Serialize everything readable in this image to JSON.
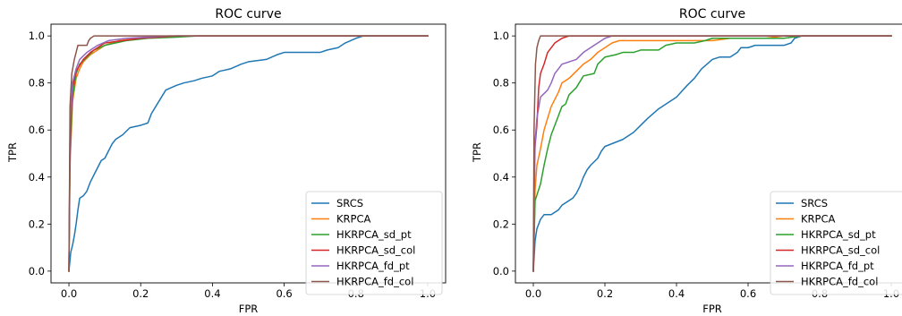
{
  "chart_data": [
    {
      "type": "line",
      "title": "ROC curve",
      "xlabel": "FPR",
      "ylabel": "TPR",
      "xlim": [
        -0.05,
        1.05
      ],
      "ylim": [
        -0.05,
        1.05
      ],
      "xticks": [
        "0.0",
        "0.2",
        "0.4",
        "0.6",
        "0.8",
        "1.0"
      ],
      "yticks": [
        "0.0",
        "0.2",
        "0.4",
        "0.6",
        "0.8",
        "1.0"
      ],
      "grid": false,
      "legend": "lower right",
      "series": [
        {
          "name": "SRCS",
          "color": "#1f77b4",
          "points": [
            [
              0,
              0
            ],
            [
              0.005,
              0.08
            ],
            [
              0.01,
              0.11
            ],
            [
              0.015,
              0.15
            ],
            [
              0.02,
              0.2
            ],
            [
              0.025,
              0.26
            ],
            [
              0.03,
              0.31
            ],
            [
              0.04,
              0.32
            ],
            [
              0.05,
              0.34
            ],
            [
              0.06,
              0.38
            ],
            [
              0.07,
              0.41
            ],
            [
              0.08,
              0.44
            ],
            [
              0.09,
              0.47
            ],
            [
              0.1,
              0.48
            ],
            [
              0.11,
              0.51
            ],
            [
              0.12,
              0.54
            ],
            [
              0.13,
              0.56
            ],
            [
              0.15,
              0.58
            ],
            [
              0.17,
              0.61
            ],
            [
              0.2,
              0.62
            ],
            [
              0.22,
              0.63
            ],
            [
              0.23,
              0.67
            ],
            [
              0.25,
              0.72
            ],
            [
              0.27,
              0.77
            ],
            [
              0.3,
              0.79
            ],
            [
              0.32,
              0.8
            ],
            [
              0.35,
              0.81
            ],
            [
              0.37,
              0.82
            ],
            [
              0.4,
              0.83
            ],
            [
              0.42,
              0.85
            ],
            [
              0.45,
              0.86
            ],
            [
              0.48,
              0.88
            ],
            [
              0.5,
              0.89
            ],
            [
              0.55,
              0.9
            ],
            [
              0.58,
              0.92
            ],
            [
              0.6,
              0.93
            ],
            [
              0.7,
              0.93
            ],
            [
              0.72,
              0.94
            ],
            [
              0.75,
              0.95
            ],
            [
              0.77,
              0.97
            ],
            [
              0.8,
              0.99
            ],
            [
              0.82,
              1.0
            ],
            [
              1.0,
              1.0
            ]
          ]
        },
        {
          "name": "KRPCA",
          "color": "#ff7f0e",
          "points": [
            [
              0,
              0
            ],
            [
              0.003,
              0.45
            ],
            [
              0.01,
              0.72
            ],
            [
              0.02,
              0.82
            ],
            [
              0.03,
              0.86
            ],
            [
              0.04,
              0.89
            ],
            [
              0.06,
              0.92
            ],
            [
              0.08,
              0.94
            ],
            [
              0.1,
              0.96
            ],
            [
              0.14,
              0.98
            ],
            [
              0.2,
              0.99
            ],
            [
              0.25,
              0.995
            ],
            [
              0.35,
              1.0
            ],
            [
              1.0,
              1.0
            ]
          ]
        },
        {
          "name": "HKRPCA_sd_pt",
          "color": "#2ca02c",
          "points": [
            [
              0,
              0
            ],
            [
              0.003,
              0.5
            ],
            [
              0.01,
              0.74
            ],
            [
              0.02,
              0.84
            ],
            [
              0.03,
              0.88
            ],
            [
              0.05,
              0.91
            ],
            [
              0.07,
              0.94
            ],
            [
              0.1,
              0.96
            ],
            [
              0.13,
              0.97
            ],
            [
              0.16,
              0.98
            ],
            [
              0.22,
              0.99
            ],
            [
              0.3,
              0.995
            ],
            [
              0.36,
              1.0
            ],
            [
              1.0,
              1.0
            ]
          ]
        },
        {
          "name": "HKRPCA_sd_col",
          "color": "#d62728",
          "points": [
            [
              0,
              0
            ],
            [
              0.003,
              0.55
            ],
            [
              0.01,
              0.78
            ],
            [
              0.02,
              0.85
            ],
            [
              0.04,
              0.9
            ],
            [
              0.06,
              0.93
            ],
            [
              0.08,
              0.95
            ],
            [
              0.1,
              0.97
            ],
            [
              0.15,
              0.98
            ],
            [
              0.2,
              0.99
            ],
            [
              0.25,
              0.995
            ],
            [
              0.3,
              1.0
            ],
            [
              1.0,
              1.0
            ]
          ]
        },
        {
          "name": "HKRPCA_fd_pt",
          "color": "#9467bd",
          "points": [
            [
              0,
              0
            ],
            [
              0.003,
              0.6
            ],
            [
              0.01,
              0.8
            ],
            [
              0.02,
              0.86
            ],
            [
              0.03,
              0.9
            ],
            [
              0.05,
              0.93
            ],
            [
              0.08,
              0.96
            ],
            [
              0.11,
              0.98
            ],
            [
              0.16,
              0.99
            ],
            [
              0.22,
              0.995
            ],
            [
              0.28,
              1.0
            ],
            [
              1.0,
              1.0
            ]
          ]
        },
        {
          "name": "HKRPCA_fd_col",
          "color": "#8c564b",
          "points": [
            [
              0,
              0
            ],
            [
              0.003,
              0.7
            ],
            [
              0.008,
              0.84
            ],
            [
              0.015,
              0.9
            ],
            [
              0.02,
              0.93
            ],
            [
              0.025,
              0.96
            ],
            [
              0.05,
              0.96
            ],
            [
              0.055,
              0.98
            ],
            [
              0.06,
              0.99
            ],
            [
              0.07,
              1.0
            ],
            [
              1.0,
              1.0
            ]
          ]
        }
      ]
    },
    {
      "type": "line",
      "title": "ROC curve",
      "xlabel": "FPR",
      "ylabel": "TPR",
      "xlim": [
        -0.05,
        1.05
      ],
      "ylim": [
        -0.05,
        1.05
      ],
      "xticks": [
        "0.0",
        "0.2",
        "0.4",
        "0.6",
        "0.8",
        "1.0"
      ],
      "yticks": [
        "0.0",
        "0.2",
        "0.4",
        "0.6",
        "0.8",
        "1.0"
      ],
      "grid": false,
      "legend": "lower right",
      "series": [
        {
          "name": "SRCS",
          "color": "#1f77b4",
          "points": [
            [
              0,
              0
            ],
            [
              0.005,
              0.13
            ],
            [
              0.01,
              0.18
            ],
            [
              0.02,
              0.22
            ],
            [
              0.03,
              0.24
            ],
            [
              0.05,
              0.24
            ],
            [
              0.06,
              0.25
            ],
            [
              0.07,
              0.26
            ],
            [
              0.08,
              0.28
            ],
            [
              0.09,
              0.29
            ],
            [
              0.1,
              0.3
            ],
            [
              0.11,
              0.31
            ],
            [
              0.12,
              0.33
            ],
            [
              0.13,
              0.36
            ],
            [
              0.14,
              0.4
            ],
            [
              0.15,
              0.43
            ],
            [
              0.16,
              0.45
            ],
            [
              0.18,
              0.48
            ],
            [
              0.19,
              0.51
            ],
            [
              0.2,
              0.53
            ],
            [
              0.25,
              0.56
            ],
            [
              0.28,
              0.59
            ],
            [
              0.3,
              0.62
            ],
            [
              0.32,
              0.65
            ],
            [
              0.35,
              0.69
            ],
            [
              0.38,
              0.72
            ],
            [
              0.4,
              0.74
            ],
            [
              0.43,
              0.79
            ],
            [
              0.45,
              0.82
            ],
            [
              0.47,
              0.86
            ],
            [
              0.5,
              0.9
            ],
            [
              0.52,
              0.91
            ],
            [
              0.55,
              0.91
            ],
            [
              0.57,
              0.93
            ],
            [
              0.58,
              0.95
            ],
            [
              0.6,
              0.95
            ],
            [
              0.62,
              0.96
            ],
            [
              0.7,
              0.96
            ],
            [
              0.72,
              0.97
            ],
            [
              0.73,
              0.99
            ],
            [
              0.75,
              1.0
            ],
            [
              1.0,
              1.0
            ]
          ]
        },
        {
          "name": "KRPCA",
          "color": "#ff7f0e",
          "points": [
            [
              0,
              0
            ],
            [
              0.005,
              0.35
            ],
            [
              0.01,
              0.45
            ],
            [
              0.02,
              0.52
            ],
            [
              0.03,
              0.6
            ],
            [
              0.04,
              0.65
            ],
            [
              0.05,
              0.7
            ],
            [
              0.07,
              0.76
            ],
            [
              0.08,
              0.8
            ],
            [
              0.1,
              0.82
            ],
            [
              0.12,
              0.85
            ],
            [
              0.14,
              0.88
            ],
            [
              0.16,
              0.9
            ],
            [
              0.18,
              0.93
            ],
            [
              0.2,
              0.95
            ],
            [
              0.22,
              0.97
            ],
            [
              0.24,
              0.98
            ],
            [
              0.3,
              0.98
            ],
            [
              0.5,
              0.98
            ],
            [
              0.55,
              0.99
            ],
            [
              0.65,
              0.99
            ],
            [
              0.7,
              1.0
            ],
            [
              1.0,
              1.0
            ]
          ]
        },
        {
          "name": "HKRPCA_sd_pt",
          "color": "#2ca02c",
          "points": [
            [
              0,
              0
            ],
            [
              0.005,
              0.3
            ],
            [
              0.02,
              0.37
            ],
            [
              0.03,
              0.45
            ],
            [
              0.04,
              0.52
            ],
            [
              0.05,
              0.58
            ],
            [
              0.06,
              0.62
            ],
            [
              0.07,
              0.66
            ],
            [
              0.08,
              0.7
            ],
            [
              0.09,
              0.71
            ],
            [
              0.1,
              0.75
            ],
            [
              0.12,
              0.78
            ],
            [
              0.14,
              0.83
            ],
            [
              0.17,
              0.84
            ],
            [
              0.18,
              0.88
            ],
            [
              0.2,
              0.91
            ],
            [
              0.23,
              0.92
            ],
            [
              0.25,
              0.93
            ],
            [
              0.28,
              0.93
            ],
            [
              0.3,
              0.94
            ],
            [
              0.35,
              0.94
            ],
            [
              0.37,
              0.96
            ],
            [
              0.4,
              0.97
            ],
            [
              0.45,
              0.97
            ],
            [
              0.48,
              0.98
            ],
            [
              0.5,
              0.99
            ],
            [
              0.55,
              0.99
            ],
            [
              0.7,
              0.99
            ],
            [
              0.75,
              1.0
            ],
            [
              1.0,
              1.0
            ]
          ]
        },
        {
          "name": "HKRPCA_sd_col",
          "color": "#d62728",
          "points": [
            [
              0,
              0
            ],
            [
              0.003,
              0.5
            ],
            [
              0.01,
              0.62
            ],
            [
              0.015,
              0.78
            ],
            [
              0.02,
              0.84
            ],
            [
              0.03,
              0.88
            ],
            [
              0.04,
              0.93
            ],
            [
              0.06,
              0.97
            ],
            [
              0.08,
              0.99
            ],
            [
              0.1,
              1.0
            ],
            [
              1.0,
              1.0
            ]
          ]
        },
        {
          "name": "HKRPCA_fd_pt",
          "color": "#9467bd",
          "points": [
            [
              0,
              0
            ],
            [
              0.005,
              0.55
            ],
            [
              0.01,
              0.65
            ],
            [
              0.02,
              0.74
            ],
            [
              0.04,
              0.77
            ],
            [
              0.05,
              0.8
            ],
            [
              0.06,
              0.84
            ],
            [
              0.08,
              0.88
            ],
            [
              0.1,
              0.89
            ],
            [
              0.12,
              0.9
            ],
            [
              0.14,
              0.93
            ],
            [
              0.16,
              0.95
            ],
            [
              0.18,
              0.97
            ],
            [
              0.2,
              0.99
            ],
            [
              0.22,
              1.0
            ],
            [
              1.0,
              1.0
            ]
          ]
        },
        {
          "name": "HKRPCA_fd_col",
          "color": "#8c564b",
          "points": [
            [
              0,
              0
            ],
            [
              0.002,
              0.6
            ],
            [
              0.006,
              0.88
            ],
            [
              0.01,
              0.95
            ],
            [
              0.015,
              0.98
            ],
            [
              0.02,
              1.0
            ],
            [
              1.0,
              1.0
            ]
          ]
        }
      ]
    }
  ]
}
